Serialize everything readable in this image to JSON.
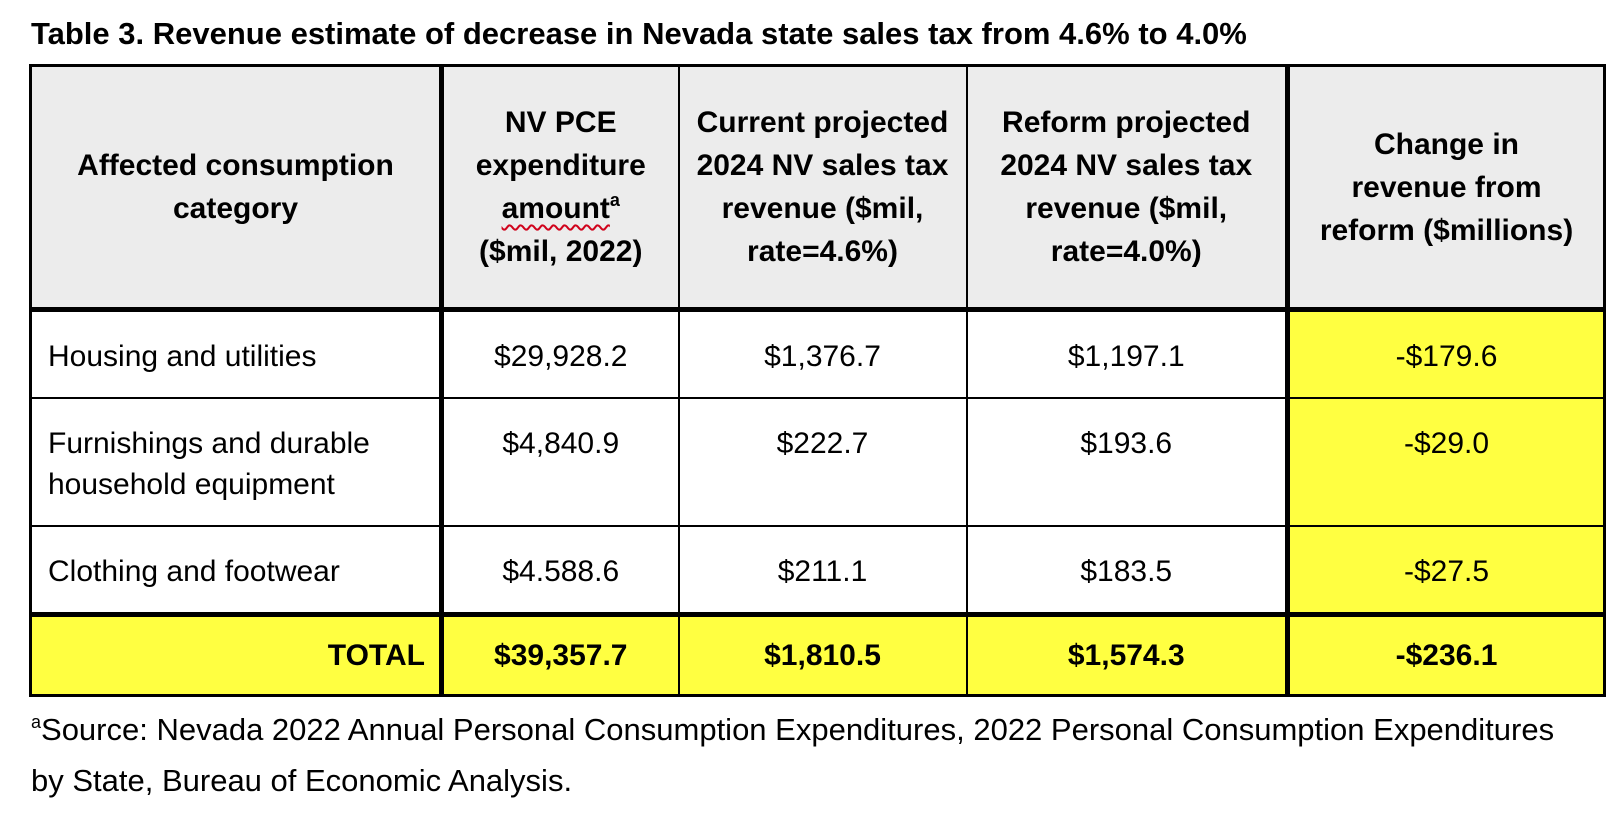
{
  "table": {
    "title": "Table 3. Revenue estimate of decrease in Nevada state sales tax from 4.6% to 4.0%",
    "headers": {
      "category": "Affected consumption category",
      "pce_line1": "NV PCE expenditure",
      "pce_amount_word": "amount",
      "pce_superscript": "a",
      "pce_line3": "($mil, 2022)",
      "current": "Current projected 2024 NV sales tax revenue ($mil, rate=4.6%)",
      "reform": "Reform projected 2024 NV sales tax revenue ($mil, rate=4.0%)",
      "change": "Change in revenue from reform ($millions)"
    },
    "rows": [
      {
        "category": "Housing and utilities",
        "pce": "$29,928.2",
        "current": "$1,376.7",
        "reform": "$1,197.1",
        "change": "-$179.6"
      },
      {
        "category": "Furnishings and durable household equipment",
        "pce": "$4,840.9",
        "current": "$222.7",
        "reform": "$193.6",
        "change": "-$29.0"
      },
      {
        "category": "Clothing and footwear",
        "pce": "$4.588.6",
        "current": "$211.1",
        "reform": "$183.5",
        "change": "-$27.5"
      }
    ],
    "total": {
      "label": "TOTAL",
      "pce": "$39,357.7",
      "current": "$1,810.5",
      "reform": "$1,574.3",
      "change": "-$236.1"
    },
    "highlight_color": "#ffff41",
    "header_background": "#ececec"
  },
  "footnote": {
    "marker": "a",
    "text": "Source: Nevada 2022 Annual Personal Consumption Expenditures, 2022 Personal Consumption Expenditures by State, Bureau of Economic Analysis."
  }
}
